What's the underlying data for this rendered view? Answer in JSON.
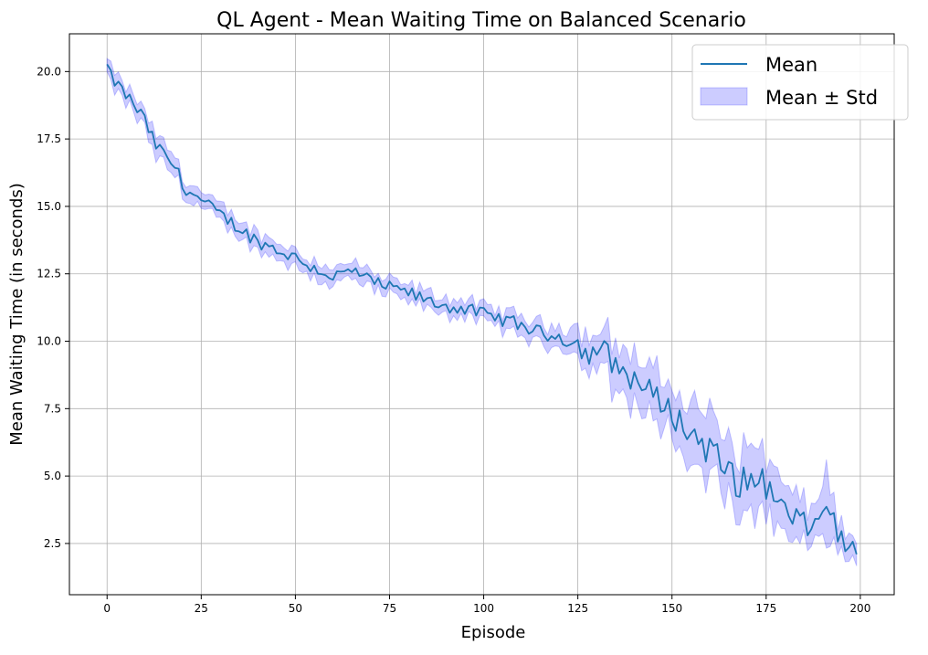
{
  "chart_data": {
    "type": "line",
    "title": "QL Agent - Mean Waiting Time on Balanced Scenario",
    "xlabel": "Episode",
    "ylabel": "Mean Waiting Time (in seconds)",
    "xlim": [
      -10,
      209
    ],
    "ylim": [
      0.6,
      21.4
    ],
    "xticks": [
      0,
      25,
      50,
      75,
      100,
      125,
      150,
      175,
      200
    ],
    "xtick_labels": [
      "0",
      "25",
      "50",
      "75",
      "100",
      "125",
      "150",
      "175",
      "200"
    ],
    "yticks": [
      2.5,
      5.0,
      7.5,
      10.0,
      12.5,
      15.0,
      17.5,
      20.0
    ],
    "ytick_labels": [
      "2.5",
      "5.0",
      "7.5",
      "10.0",
      "12.5",
      "15.0",
      "17.5",
      "20.0"
    ],
    "grid": true,
    "legend": {
      "placement": "top-right",
      "entries": [
        "Mean",
        "Mean ± Std"
      ]
    },
    "colors": {
      "mean_line": "#1f77b4",
      "band_fill": "#0000ff",
      "band_alpha": 0.2,
      "grid": "#b0b0b0"
    },
    "anchors": {
      "x": [
        0,
        1,
        4,
        7,
        10,
        12,
        15,
        18,
        20,
        25,
        30,
        33,
        37,
        40,
        45,
        50,
        55,
        60,
        63,
        66,
        70,
        75,
        80,
        85,
        90,
        95,
        100,
        105,
        110,
        115,
        120,
        125,
        128,
        131,
        135,
        140,
        145,
        150,
        153,
        157,
        160,
        163,
        166,
        170,
        174,
        177,
        180,
        183,
        186,
        189,
        191,
        194,
        196,
        199
      ],
      "mean": [
        20.2,
        19.8,
        19.3,
        18.8,
        18.2,
        17.5,
        16.9,
        16.5,
        15.8,
        15.2,
        14.7,
        14.4,
        14.0,
        13.7,
        13.4,
        13.1,
        12.7,
        12.4,
        12.5,
        12.6,
        12.2,
        12.0,
        11.8,
        11.5,
        11.3,
        11.2,
        11.0,
        10.8,
        10.6,
        10.3,
        10.2,
        9.9,
        9.4,
        9.8,
        9.1,
        8.6,
        8.0,
        7.4,
        6.8,
        6.4,
        6.0,
        5.4,
        5.0,
        4.6,
        5.1,
        4.0,
        3.7,
        3.4,
        3.1,
        3.3,
        4.2,
        2.9,
        2.4,
        2.3
      ],
      "std": [
        0.25,
        0.3,
        0.3,
        0.3,
        0.35,
        0.4,
        0.4,
        0.4,
        0.35,
        0.3,
        0.3,
        0.3,
        0.3,
        0.3,
        0.3,
        0.3,
        0.3,
        0.3,
        0.3,
        0.35,
        0.3,
        0.25,
        0.3,
        0.3,
        0.3,
        0.3,
        0.3,
        0.3,
        0.35,
        0.35,
        0.4,
        0.55,
        0.7,
        0.8,
        0.85,
        0.85,
        0.85,
        0.9,
        1.0,
        1.1,
        1.2,
        1.25,
        1.25,
        1.2,
        1.15,
        1.05,
        0.9,
        0.8,
        0.75,
        0.7,
        1.3,
        0.5,
        0.4,
        0.35
      ]
    }
  }
}
